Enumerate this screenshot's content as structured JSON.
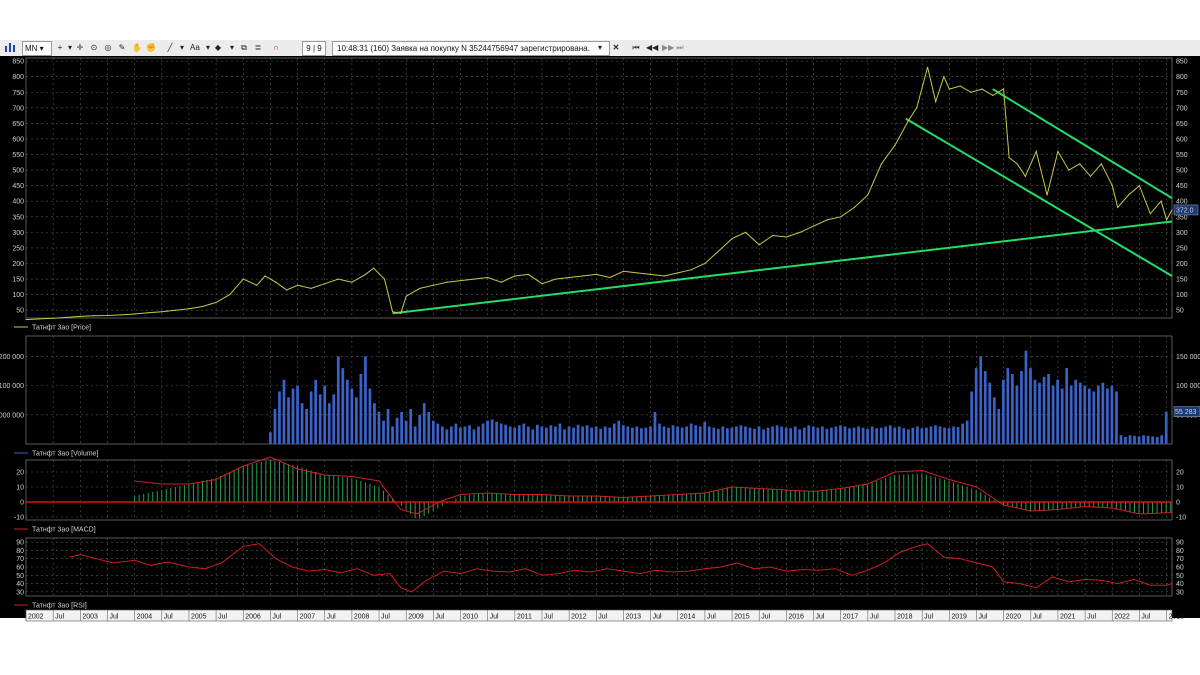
{
  "toolbar": {
    "timeframe": "MN",
    "counter": "9 | 9",
    "message": "10:48:31  (160) Заявка на покупку N 35244756947 зарегистрирована.",
    "close_icon": "close-icon",
    "nav_first_icon": "nav-first-icon",
    "nav_prev_icon": "nav-prev-icon",
    "nav_next_icon": "nav-next-icon",
    "nav_last_icon": "nav-last-icon"
  },
  "chart_data": [
    {
      "type": "line",
      "legend": "Татнфт 3ао [Price]",
      "color": "#c8c84a",
      "ylim": [
        25,
        860
      ],
      "yticks": [
        50,
        100,
        150,
        200,
        250,
        300,
        350,
        400,
        450,
        500,
        550,
        600,
        650,
        700,
        750,
        800,
        850
      ],
      "last_value": "372.0",
      "x": [
        2002.0,
        2002.25,
        2002.5,
        2002.75,
        2003.0,
        2003.25,
        2003.5,
        2003.75,
        2004.0,
        2004.25,
        2004.5,
        2004.75,
        2005.0,
        2005.25,
        2005.5,
        2005.75,
        2006.0,
        2006.25,
        2006.4,
        2006.6,
        2006.8,
        2007.0,
        2007.25,
        2007.5,
        2007.75,
        2008.0,
        2008.25,
        2008.4,
        2008.6,
        2008.75,
        2008.9,
        2009.0,
        2009.25,
        2009.5,
        2009.75,
        2010.0,
        2010.25,
        2010.5,
        2010.75,
        2011.0,
        2011.25,
        2011.5,
        2011.75,
        2012.0,
        2012.25,
        2012.5,
        2012.75,
        2013.0,
        2013.25,
        2013.5,
        2013.75,
        2014.0,
        2014.25,
        2014.5,
        2014.75,
        2015.0,
        2015.25,
        2015.5,
        2015.75,
        2016.0,
        2016.25,
        2016.5,
        2016.75,
        2017.0,
        2017.25,
        2017.5,
        2017.75,
        2018.0,
        2018.25,
        2018.4,
        2018.6,
        2018.75,
        2018.9,
        2019.0,
        2019.2,
        2019.4,
        2019.6,
        2019.8,
        2020.0,
        2020.1,
        2020.25,
        2020.4,
        2020.6,
        2020.8,
        2021.0,
        2021.2,
        2021.4,
        2021.6,
        2021.8,
        2022.0,
        2022.1,
        2022.3,
        2022.5,
        2022.7,
        2022.9,
        2023.0,
        2023.1
      ],
      "y": [
        20,
        22,
        24,
        27,
        30,
        32,
        33,
        35,
        38,
        42,
        45,
        50,
        55,
        62,
        75,
        100,
        150,
        130,
        160,
        140,
        115,
        130,
        120,
        135,
        150,
        140,
        165,
        185,
        150,
        45,
        40,
        95,
        120,
        130,
        140,
        145,
        150,
        155,
        140,
        160,
        165,
        135,
        150,
        155,
        160,
        165,
        155,
        175,
        170,
        165,
        160,
        170,
        180,
        200,
        240,
        280,
        300,
        260,
        290,
        285,
        300,
        320,
        340,
        350,
        380,
        420,
        520,
        580,
        660,
        700,
        830,
        720,
        800,
        760,
        770,
        750,
        760,
        740,
        760,
        540,
        520,
        480,
        560,
        420,
        560,
        500,
        520,
        480,
        520,
        450,
        380,
        420,
        450,
        360,
        400,
        340,
        372
      ]
    },
    {
      "type": "bar",
      "legend": "Татнфт 3ао [Volume]",
      "color": "#3a62c8",
      "ylim": [
        0,
        185000
      ],
      "left_ticks": [
        "200 000",
        "100 000",
        "000 000"
      ],
      "right_ticks": [
        50000,
        100000,
        150000
      ],
      "right_tick_labels": [
        "50 000",
        "100 000",
        "150 000"
      ],
      "last_value": "55 283",
      "x_start": 2006.5,
      "x_step": 0.0833,
      "values": [
        20000,
        60000,
        90000,
        110000,
        80000,
        95000,
        100000,
        70000,
        60000,
        90000,
        110000,
        85000,
        100000,
        70000,
        85000,
        150000,
        130000,
        110000,
        95000,
        80000,
        120000,
        150000,
        95000,
        70000,
        55000,
        40000,
        60000,
        30000,
        45000,
        55000,
        40000,
        60000,
        30000,
        50000,
        70000,
        55000,
        40000,
        35000,
        30000,
        25000,
        30000,
        35000,
        28000,
        30000,
        32000,
        25000,
        30000,
        35000,
        40000,
        42000,
        38000,
        35000,
        33000,
        30000,
        28000,
        32000,
        35000,
        30000,
        25000,
        33000,
        30000,
        28000,
        32000,
        30000,
        35000,
        25000,
        30000,
        28000,
        33000,
        30000,
        32000,
        28000,
        30000,
        26000,
        30000,
        28000,
        35000,
        40000,
        32000,
        30000,
        28000,
        30000,
        27000,
        28000,
        30000,
        55000,
        35000,
        30000,
        28000,
        32000,
        30000,
        28000,
        30000,
        35000,
        32000,
        30000,
        38000,
        30000,
        28000,
        26000,
        30000,
        27000,
        28000,
        30000,
        32000,
        30000,
        28000,
        26000,
        30000,
        25000,
        28000,
        30000,
        32000,
        30000,
        28000,
        27000,
        30000,
        25000,
        28000,
        32000,
        30000,
        28000,
        30000,
        26000,
        28000,
        30000,
        32000,
        30000,
        27000,
        28000,
        30000,
        28000,
        26000,
        30000,
        27000,
        28000,
        30000,
        32000,
        28000,
        30000,
        27000,
        25000,
        28000,
        30000,
        27000,
        28000,
        30000,
        32000,
        30000,
        28000,
        27000,
        30000,
        29000,
        35000,
        40000,
        90000,
        130000,
        150000,
        125000,
        105000,
        80000,
        60000,
        110000,
        130000,
        120000,
        100000,
        125000,
        160000,
        130000,
        110000,
        105000,
        115000,
        120000,
        100000,
        110000,
        95000,
        130000,
        100000,
        110000,
        105000,
        100000,
        95000,
        90000,
        100000,
        105000,
        95000,
        100000,
        90000,
        15000,
        12000,
        15000,
        14000,
        13000,
        15000,
        14000,
        13000,
        12000,
        15000,
        55283
      ]
    },
    {
      "type": "area",
      "legend": "Татнфт 3ао [MACD]",
      "ylim": [
        -12,
        28
      ],
      "yticks": [
        -10,
        0,
        10,
        20
      ],
      "line_color": "#cc2222",
      "hist_color": "#2f9e4f",
      "zero_color": "#dd1111",
      "x": [
        2004.0,
        2004.5,
        2005.0,
        2005.5,
        2006.0,
        2006.5,
        2007.0,
        2007.5,
        2008.0,
        2008.5,
        2008.9,
        2009.2,
        2009.6,
        2010.0,
        2010.5,
        2011.0,
        2011.5,
        2012.0,
        2012.5,
        2013.0,
        2013.5,
        2014.0,
        2014.5,
        2015.0,
        2015.5,
        2016.0,
        2016.5,
        2017.0,
        2017.5,
        2018.0,
        2018.5,
        2019.0,
        2019.5,
        2020.0,
        2020.5,
        2021.0,
        2021.5,
        2022.0,
        2022.5,
        2023.1
      ],
      "line": [
        14,
        12,
        12,
        15,
        24,
        30,
        22,
        18,
        17,
        14,
        -5,
        -8,
        0,
        5,
        6,
        5,
        5,
        4,
        4,
        3,
        4,
        5,
        6,
        10,
        9,
        8,
        7,
        9,
        12,
        20,
        21,
        15,
        10,
        -2,
        -6,
        -5,
        -3,
        -4,
        -8,
        -7
      ],
      "hist": [
        4,
        8,
        12,
        16,
        24,
        28,
        24,
        18,
        16,
        10,
        -2,
        -12,
        -4,
        4,
        6,
        5,
        5,
        4,
        4,
        3,
        4,
        5,
        6,
        10,
        9,
        8,
        7,
        9,
        12,
        18,
        19,
        14,
        8,
        -2,
        -6,
        -5,
        -3,
        -4,
        -8,
        -7
      ]
    },
    {
      "type": "line",
      "legend": "Татнфт 3ао [RSI]",
      "color": "#cc1e1e",
      "ylim": [
        25,
        95
      ],
      "yticks": [
        30,
        40,
        50,
        60,
        70,
        80,
        90
      ],
      "x": [
        2002.8,
        2003.0,
        2003.3,
        2003.6,
        2004.0,
        2004.3,
        2004.6,
        2005.0,
        2005.3,
        2005.6,
        2006.0,
        2006.3,
        2006.6,
        2006.9,
        2007.2,
        2007.5,
        2007.8,
        2008.1,
        2008.4,
        2008.7,
        2008.9,
        2009.1,
        2009.4,
        2009.7,
        2010.0,
        2010.3,
        2010.6,
        2010.9,
        2011.2,
        2011.5,
        2011.8,
        2012.1,
        2012.4,
        2012.7,
        2013.0,
        2013.3,
        2013.6,
        2013.9,
        2014.2,
        2014.5,
        2014.8,
        2015.1,
        2015.4,
        2015.7,
        2016.0,
        2016.3,
        2016.6,
        2016.9,
        2017.2,
        2017.5,
        2017.8,
        2018.1,
        2018.4,
        2018.6,
        2018.9,
        2019.2,
        2019.5,
        2019.8,
        2020.0,
        2020.3,
        2020.6,
        2020.9,
        2021.2,
        2021.5,
        2021.8,
        2022.1,
        2022.4,
        2022.7,
        2023.0,
        2023.1
      ],
      "y": [
        72,
        75,
        70,
        65,
        68,
        62,
        66,
        60,
        58,
        65,
        85,
        88,
        70,
        60,
        55,
        57,
        53,
        58,
        50,
        52,
        35,
        30,
        45,
        55,
        52,
        58,
        55,
        54,
        58,
        50,
        52,
        56,
        54,
        58,
        55,
        52,
        56,
        54,
        55,
        58,
        60,
        65,
        58,
        60,
        55,
        57,
        56,
        58,
        50,
        56,
        65,
        78,
        85,
        88,
        72,
        70,
        65,
        60,
        42,
        40,
        35,
        48,
        42,
        45,
        44,
        40,
        45,
        38,
        38,
        40
      ]
    }
  ],
  "x_axis": {
    "start": 2002.0,
    "end": 2023.1,
    "labels": [
      "2002",
      "Jul",
      "2003",
      "Jul",
      "2004",
      "Jul",
      "2005",
      "Jul",
      "2006",
      "Jul",
      "2007",
      "Jul",
      "2008",
      "Jul",
      "2009",
      "Jul",
      "2010",
      "Jul",
      "2011",
      "Jul",
      "2012",
      "Jul",
      "2013",
      "Jul",
      "2014",
      "Jul",
      "2015",
      "Jul",
      "2016",
      "Jul",
      "2017",
      "Jul",
      "2018",
      "Jul",
      "2019",
      "Jul",
      "2020",
      "Jul",
      "2021",
      "Jul",
      "2022",
      "Jul",
      "2023"
    ]
  },
  "trendlines": {
    "color": "#22dd66",
    "lines": [
      {
        "x1": 2008.75,
        "y1": 40,
        "x2": 2023.1,
        "y2": 335
      },
      {
        "x1": 2018.2,
        "y1": 665,
        "x2": 2023.1,
        "y2": 160
      },
      {
        "x1": 2019.8,
        "y1": 760,
        "x2": 2023.1,
        "y2": 410
      }
    ]
  }
}
